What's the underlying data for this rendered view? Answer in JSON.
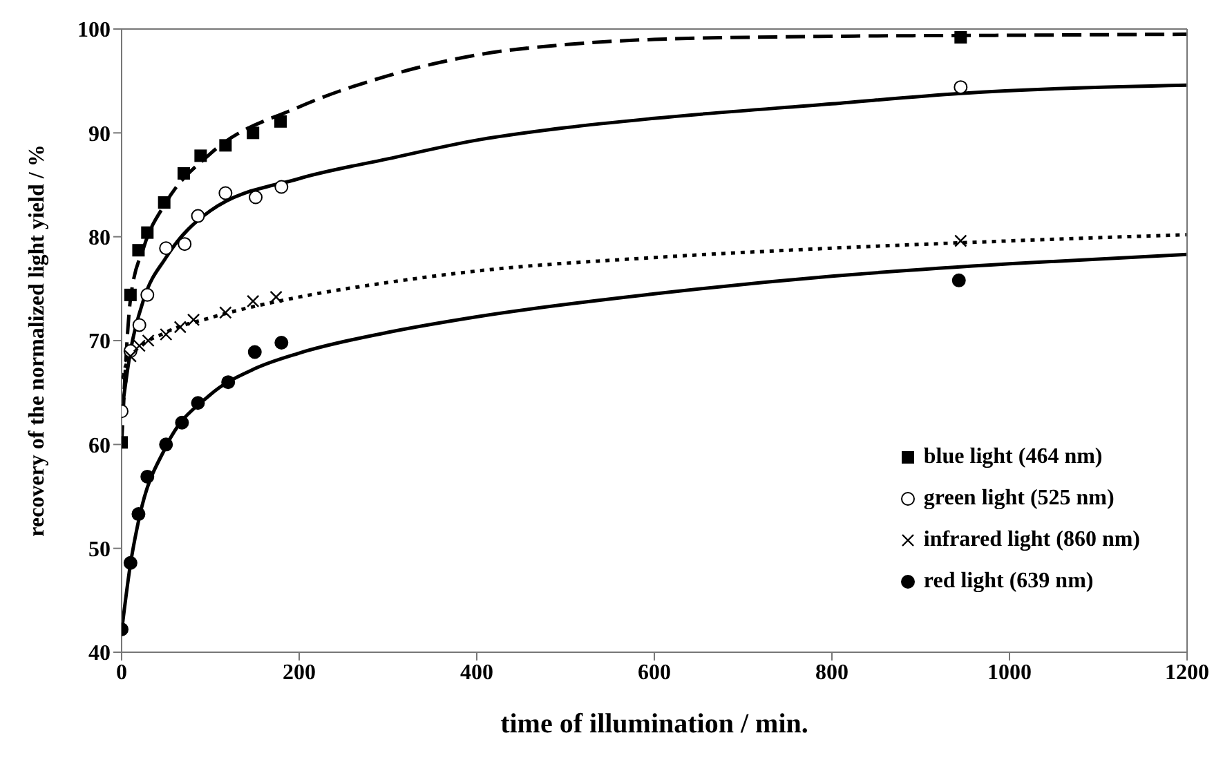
{
  "chart_data": {
    "type": "scatter",
    "xlabel": "time of illumination / min.",
    "ylabel": "recovery of the normalized light yield / %",
    "xlim": [
      0,
      1200
    ],
    "ylim": [
      40,
      100
    ],
    "xticks": [
      0,
      200,
      400,
      600,
      800,
      1000,
      1200
    ],
    "yticks": [
      40,
      50,
      60,
      70,
      80,
      90,
      100
    ],
    "grid": false,
    "legend": "bottom right",
    "series": [
      {
        "name": "blue light (464 nm)",
        "color": "#000000",
        "marker": "square",
        "x": [
          0,
          10,
          19,
          29,
          48,
          70,
          89,
          117,
          148,
          179,
          945
        ],
        "values": [
          60.2,
          74.4,
          78.7,
          80.4,
          83.3,
          86.1,
          87.8,
          88.8,
          90,
          91.1,
          99.2
        ]
      },
      {
        "name": "green light (525 nm)",
        "color": "#ffffff",
        "marker": "circle",
        "x": [
          0,
          10,
          20,
          29,
          50,
          71,
          86,
          117,
          151,
          180,
          945
        ],
        "values": [
          63.2,
          69,
          71.5,
          74.4,
          78.9,
          79.3,
          82,
          84.2,
          83.8,
          84.8,
          94.4
        ]
      },
      {
        "name": "infrared light (860 nm)",
        "color": "#000000",
        "marker": "cross",
        "x": [
          0,
          10,
          20,
          30,
          50,
          66,
          81,
          117,
          148,
          174,
          945
        ],
        "values": [
          66.5,
          68.5,
          69.5,
          70,
          70.6,
          71.3,
          72,
          72.7,
          73.8,
          74.2,
          79.6
        ]
      },
      {
        "name": "red light (639 nm)",
        "color": "#000000",
        "marker": "circle",
        "x": [
          0,
          10,
          19,
          29,
          50,
          68,
          86,
          120,
          150,
          180,
          943
        ],
        "values": [
          42.2,
          48.6,
          53.3,
          56.9,
          60,
          62.1,
          64,
          66,
          68.9,
          69.8,
          75.8
        ]
      },
      {
        "type": "line",
        "color": "#000000",
        "marker": "none",
        "line_style": "dashed",
        "x": [
          0,
          10,
          25,
          50,
          100,
          200,
          300,
          400,
          500,
          600,
          800,
          1000,
          1200
        ],
        "values": [
          60,
          74,
          79,
          83.3,
          88,
          92.5,
          95.5,
          97.5,
          98.5,
          99,
          99.3,
          99.4,
          99.5
        ]
      },
      {
        "type": "line",
        "color": "#000000",
        "marker": "none",
        "line_style": "solid",
        "x": [
          0,
          10,
          25,
          50,
          100,
          200,
          300,
          400,
          500,
          600,
          800,
          945,
          1200
        ],
        "values": [
          63,
          69,
          74,
          78,
          82.5,
          85.6,
          87.5,
          89.3,
          90.5,
          91.4,
          92.8,
          93.8,
          94.6
        ]
      },
      {
        "type": "line",
        "color": "#000000",
        "marker": "none",
        "line_style": "dotted",
        "x": [
          0,
          10,
          50,
          100,
          200,
          300,
          400,
          600,
          800,
          1000,
          1200
        ],
        "values": [
          66.5,
          68.5,
          70.8,
          72.2,
          74.2,
          75.6,
          76.7,
          78,
          78.9,
          79.6,
          80.2
        ]
      },
      {
        "type": "line",
        "color": "#000000",
        "marker": "none",
        "line_style": "solid",
        "x": [
          0,
          10,
          20,
          50,
          100,
          150,
          200,
          300,
          400,
          600,
          800,
          1000,
          1200
        ],
        "values": [
          42,
          48.5,
          53,
          59.8,
          64.8,
          67.3,
          68.8,
          70.8,
          72.3,
          74.5,
          76.2,
          77.4,
          78.3
        ]
      }
    ]
  }
}
